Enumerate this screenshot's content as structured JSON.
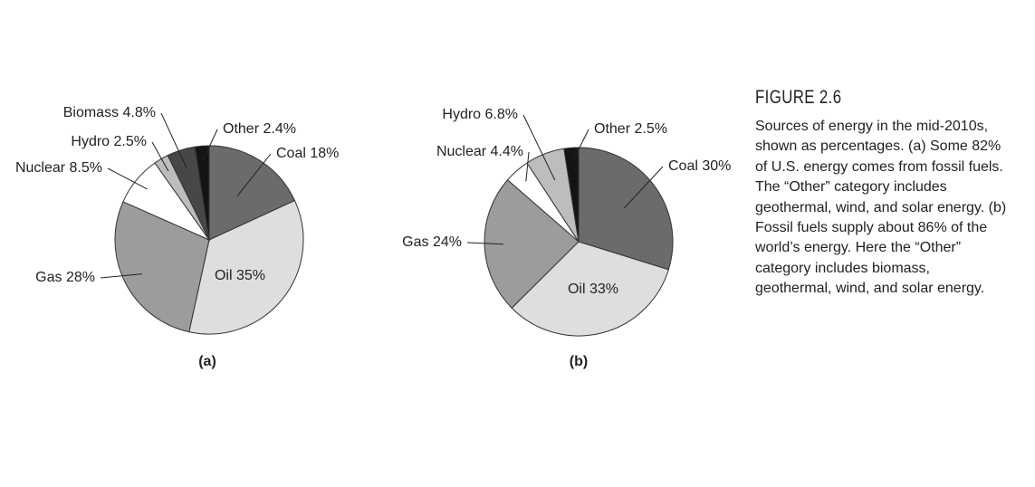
{
  "chart_data": [
    {
      "type": "pie",
      "title": "(a)",
      "categories": [
        "Coal",
        "Oil",
        "Gas",
        "Nuclear",
        "Hydro",
        "Biomass",
        "Other"
      ],
      "values": [
        18,
        35,
        28,
        8.5,
        2.5,
        4.8,
        2.4
      ],
      "value_labels": [
        "18%",
        "35%",
        "28%",
        "8.5%",
        "2.5%",
        "4.8%",
        "2.4%"
      ],
      "colors": [
        "#6b6b6b",
        "#dedede",
        "#9c9c9c",
        "#ffffff",
        "#bdbdbd",
        "#474747",
        "#141414"
      ]
    },
    {
      "type": "pie",
      "title": "(b)",
      "categories": [
        "Coal",
        "Oil",
        "Gas",
        "Nuclear",
        "Hydro",
        "Other"
      ],
      "values": [
        30,
        33,
        24,
        4.4,
        6.8,
        2.5
      ],
      "value_labels": [
        "30%",
        "33%",
        "24%",
        "4.4%",
        "6.8%",
        "2.5%"
      ],
      "colors": [
        "#6b6b6b",
        "#dedede",
        "#9c9c9c",
        "#ffffff",
        "#bdbdbd",
        "#141414"
      ]
    }
  ],
  "figure": {
    "label": "FIGURE 2.6",
    "caption": "Sources of energy in the mid-2010s, shown as percentages. (a) Some 82% of U.S. energy comes from fossil fuels. The “Other” category includes geothermal, wind, and solar energy. (b) Fossil fuels supply about 86% of the world’s energy. Here the “Other” category includes biomass, geothermal, wind, and solar energy."
  }
}
